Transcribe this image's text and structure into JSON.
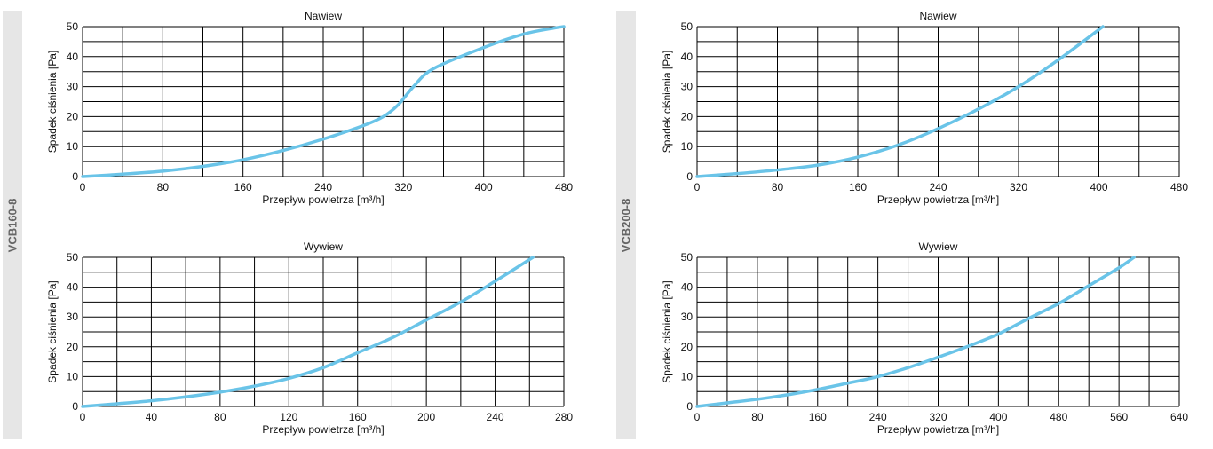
{
  "sidebars": {
    "left_label": "VCB160-8",
    "right_label": "VCB200-8"
  },
  "colors": {
    "curve": "#6ac4e8",
    "grid": "#000000"
  },
  "chart_data": [
    {
      "type": "line",
      "model": "VCB160-8",
      "title": "Nawiew",
      "xlabel": "Przepływ powietrza [m³/h]",
      "ylabel": "Spadek ciśnienia [Pa]",
      "xlim": [
        0,
        480
      ],
      "ylim": [
        0,
        50
      ],
      "x_major_ticks": [
        0,
        80,
        160,
        240,
        320,
        400,
        480
      ],
      "x_grid_step": 40,
      "y_ticks": [
        0,
        10,
        20,
        30,
        40,
        50
      ],
      "y_grid_step": 5,
      "series": [
        {
          "name": "Nawiew",
          "x": [
            0,
            40,
            80,
            120,
            160,
            200,
            240,
            280,
            300,
            315,
            330,
            350,
            400,
            440,
            470,
            480
          ],
          "y": [
            0,
            0.8,
            1.8,
            3.4,
            5.6,
            8.7,
            12.5,
            17,
            20,
            24,
            30,
            36,
            43,
            47.5,
            49.5,
            50
          ]
        }
      ]
    },
    {
      "type": "line",
      "model": "VCB160-8",
      "title": "Wywiew",
      "xlabel": "Przepływ powietrza [m³/h]",
      "ylabel": "Spadek ciśnienia [Pa]",
      "xlim": [
        0,
        280
      ],
      "ylim": [
        0,
        50
      ],
      "x_major_ticks": [
        0,
        40,
        80,
        120,
        160,
        200,
        240,
        280
      ],
      "x_grid_step": 20,
      "y_ticks": [
        0,
        10,
        20,
        30,
        40,
        50
      ],
      "y_grid_step": 5,
      "series": [
        {
          "name": "Wywiew",
          "x": [
            0,
            20,
            40,
            60,
            80,
            100,
            120,
            140,
            160,
            180,
            200,
            220,
            240,
            262
          ],
          "y": [
            0,
            0.9,
            1.9,
            3.2,
            4.8,
            6.8,
            9.4,
            13,
            18,
            23,
            29,
            35,
            42,
            50
          ]
        }
      ]
    },
    {
      "type": "line",
      "model": "VCB200-8",
      "title": "Nawiew",
      "xlabel": "Przepływ powietrza [m³/h]",
      "ylabel": "Spadek ciśnienia [Pa]",
      "xlim": [
        0,
        480
      ],
      "ylim": [
        0,
        50
      ],
      "x_major_ticks": [
        0,
        80,
        160,
        240,
        320,
        400,
        480
      ],
      "x_grid_step": 40,
      "y_ticks": [
        0,
        10,
        20,
        30,
        40,
        50
      ],
      "y_grid_step": 5,
      "series": [
        {
          "name": "Nawiew",
          "x": [
            0,
            40,
            80,
            120,
            160,
            200,
            240,
            280,
            320,
            360,
            404
          ],
          "y": [
            0,
            1,
            2.2,
            3.8,
            6.5,
            10.5,
            16,
            22.5,
            30,
            39,
            50
          ]
        }
      ]
    },
    {
      "type": "line",
      "model": "VCB200-8",
      "title": "Wywiew",
      "xlabel": "Przepływ powietrza [m³/h]",
      "ylabel": "Spadek ciśnienia [Pa]",
      "xlim": [
        0,
        640
      ],
      "ylim": [
        0,
        50
      ],
      "x_major_ticks": [
        0,
        80,
        160,
        240,
        320,
        400,
        480,
        560,
        640
      ],
      "x_grid_step": 40,
      "y_ticks": [
        0,
        10,
        20,
        30,
        40,
        50
      ],
      "y_grid_step": 5,
      "series": [
        {
          "name": "Wywiew",
          "x": [
            0,
            40,
            80,
            120,
            160,
            200,
            240,
            280,
            320,
            360,
            400,
            440,
            480,
            520,
            560,
            580
          ],
          "y": [
            0,
            1.2,
            2.4,
            3.9,
            5.7,
            7.8,
            10,
            13,
            16.5,
            20.2,
            24.3,
            29.5,
            34.5,
            40.5,
            46.5,
            50
          ]
        }
      ]
    }
  ]
}
